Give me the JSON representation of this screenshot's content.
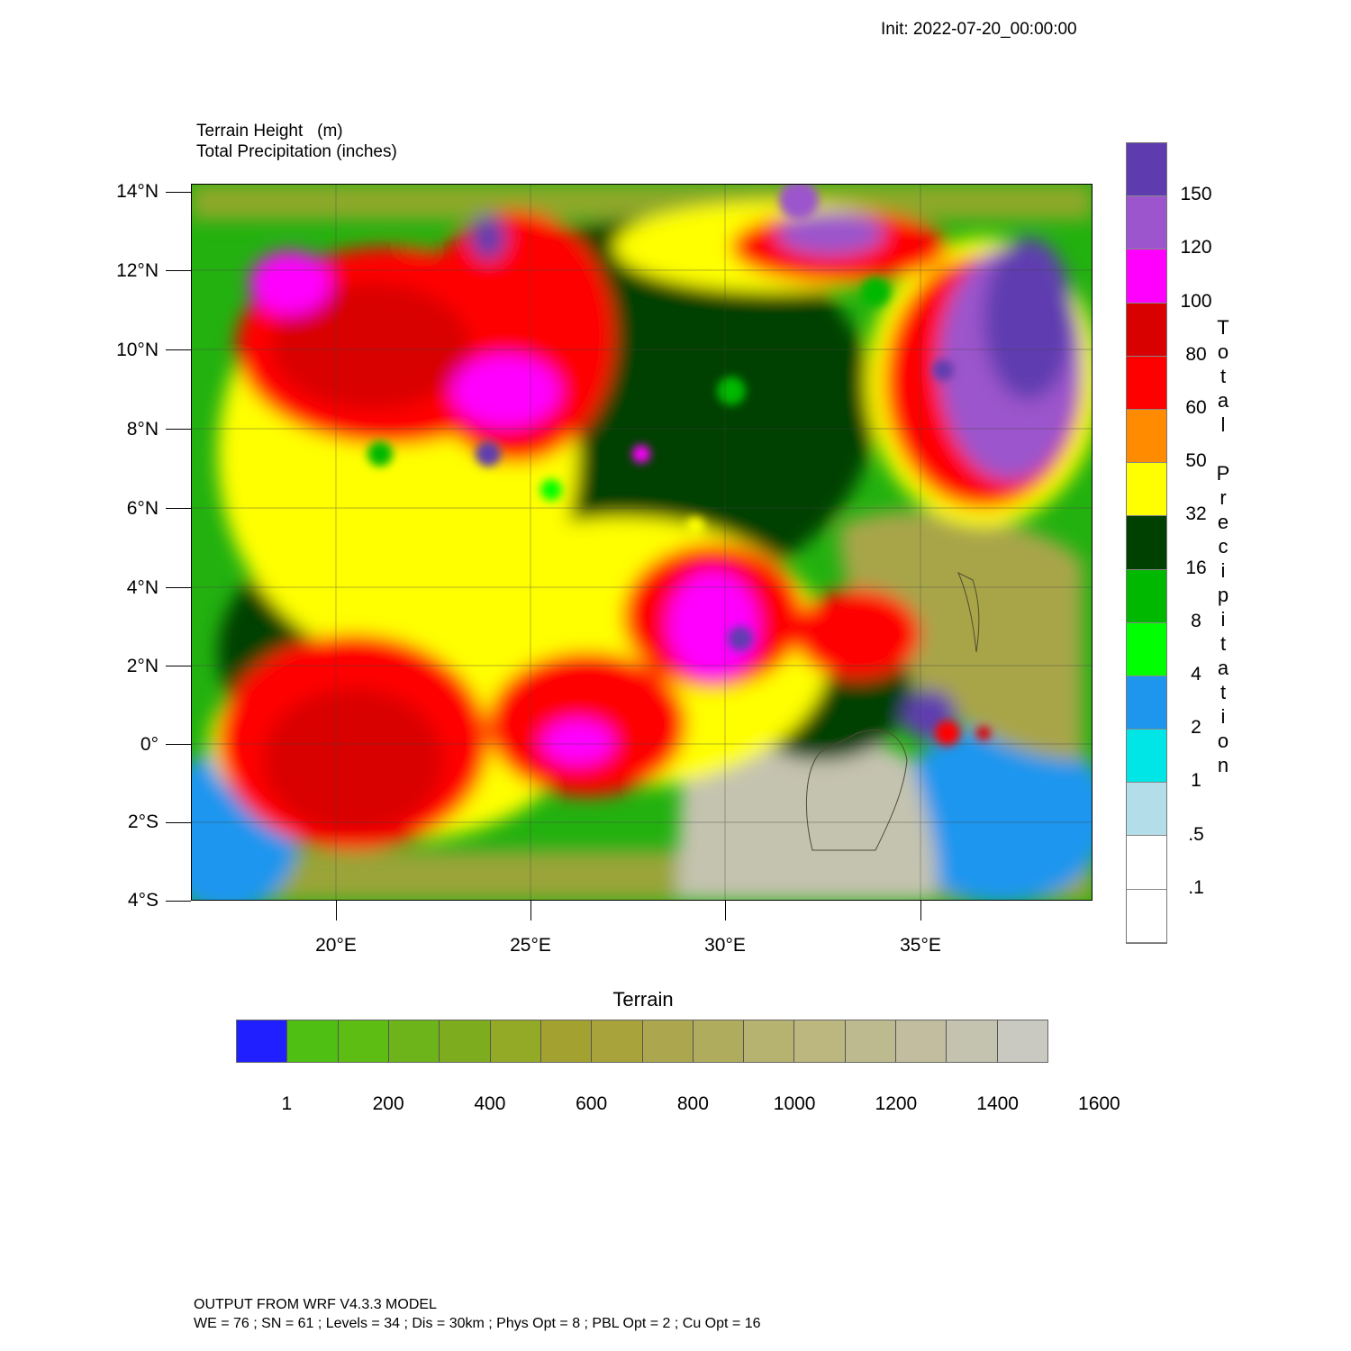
{
  "header": {
    "init": "Init: 2022-07-20_00:00:00"
  },
  "titles": {
    "line1": "Terrain Height   (m)",
    "line2": "Total Precipitation (inches)"
  },
  "map": {
    "lat_labels": [
      "14°N",
      "12°N",
      "10°N",
      "8°N",
      "6°N",
      "4°N",
      "2°N",
      "0°",
      "2°S",
      "4°S"
    ],
    "lon_labels": [
      "20°E",
      "25°E",
      "30°E",
      "35°E"
    ],
    "extent": {
      "lon_min": 16.3,
      "lon_max": 39.3,
      "lat_min": -4.0,
      "lat_max": 14.2
    }
  },
  "precip_legend": {
    "title_letters": [
      "T",
      "o",
      "t",
      "a",
      "l",
      " ",
      "P",
      "r",
      "e",
      "c",
      "i",
      "p",
      "i",
      "t",
      "a",
      "t",
      "i",
      "o",
      "n"
    ],
    "labels": [
      "150",
      "120",
      "100",
      "80",
      "60",
      "50",
      "32",
      "16",
      "8",
      "4",
      "2",
      "1",
      ".5",
      ".1"
    ],
    "colors": [
      "#5e3cb0",
      "#9c55cc",
      "#ff00ff",
      "#d90000",
      "#ff0000",
      "#ff8c00",
      "#ffff00",
      "#004000",
      "#00b800",
      "#00ff00",
      "#1e96ee",
      "#00e6e6",
      "#b3dde8",
      "#ffffff",
      "#ffffff"
    ]
  },
  "terrain_legend": {
    "title": "Terrain",
    "labels": [
      "1",
      "200",
      "400",
      "600",
      "800",
      "1000",
      "1200",
      "1400",
      "1600"
    ],
    "colors": [
      "#1f1fff",
      "#4fbf13",
      "#5dbd13",
      "#6cb419",
      "#7dac1e",
      "#93aa26",
      "#a3a230",
      "#a9a33b",
      "#aca74f",
      "#b0ac5e",
      "#b6b26f",
      "#bbb77f",
      "#beba8f",
      "#c1bd9e",
      "#c4c3af",
      "#c9c9c1"
    ]
  },
  "footer": {
    "line1": "OUTPUT FROM WRF V4.3.3 MODEL",
    "line2": "WE = 76 ; SN = 61 ; Levels = 34 ; Dis = 30km ; Phys Opt = 8 ; PBL Opt = 2 ; Cu Opt = 16"
  }
}
